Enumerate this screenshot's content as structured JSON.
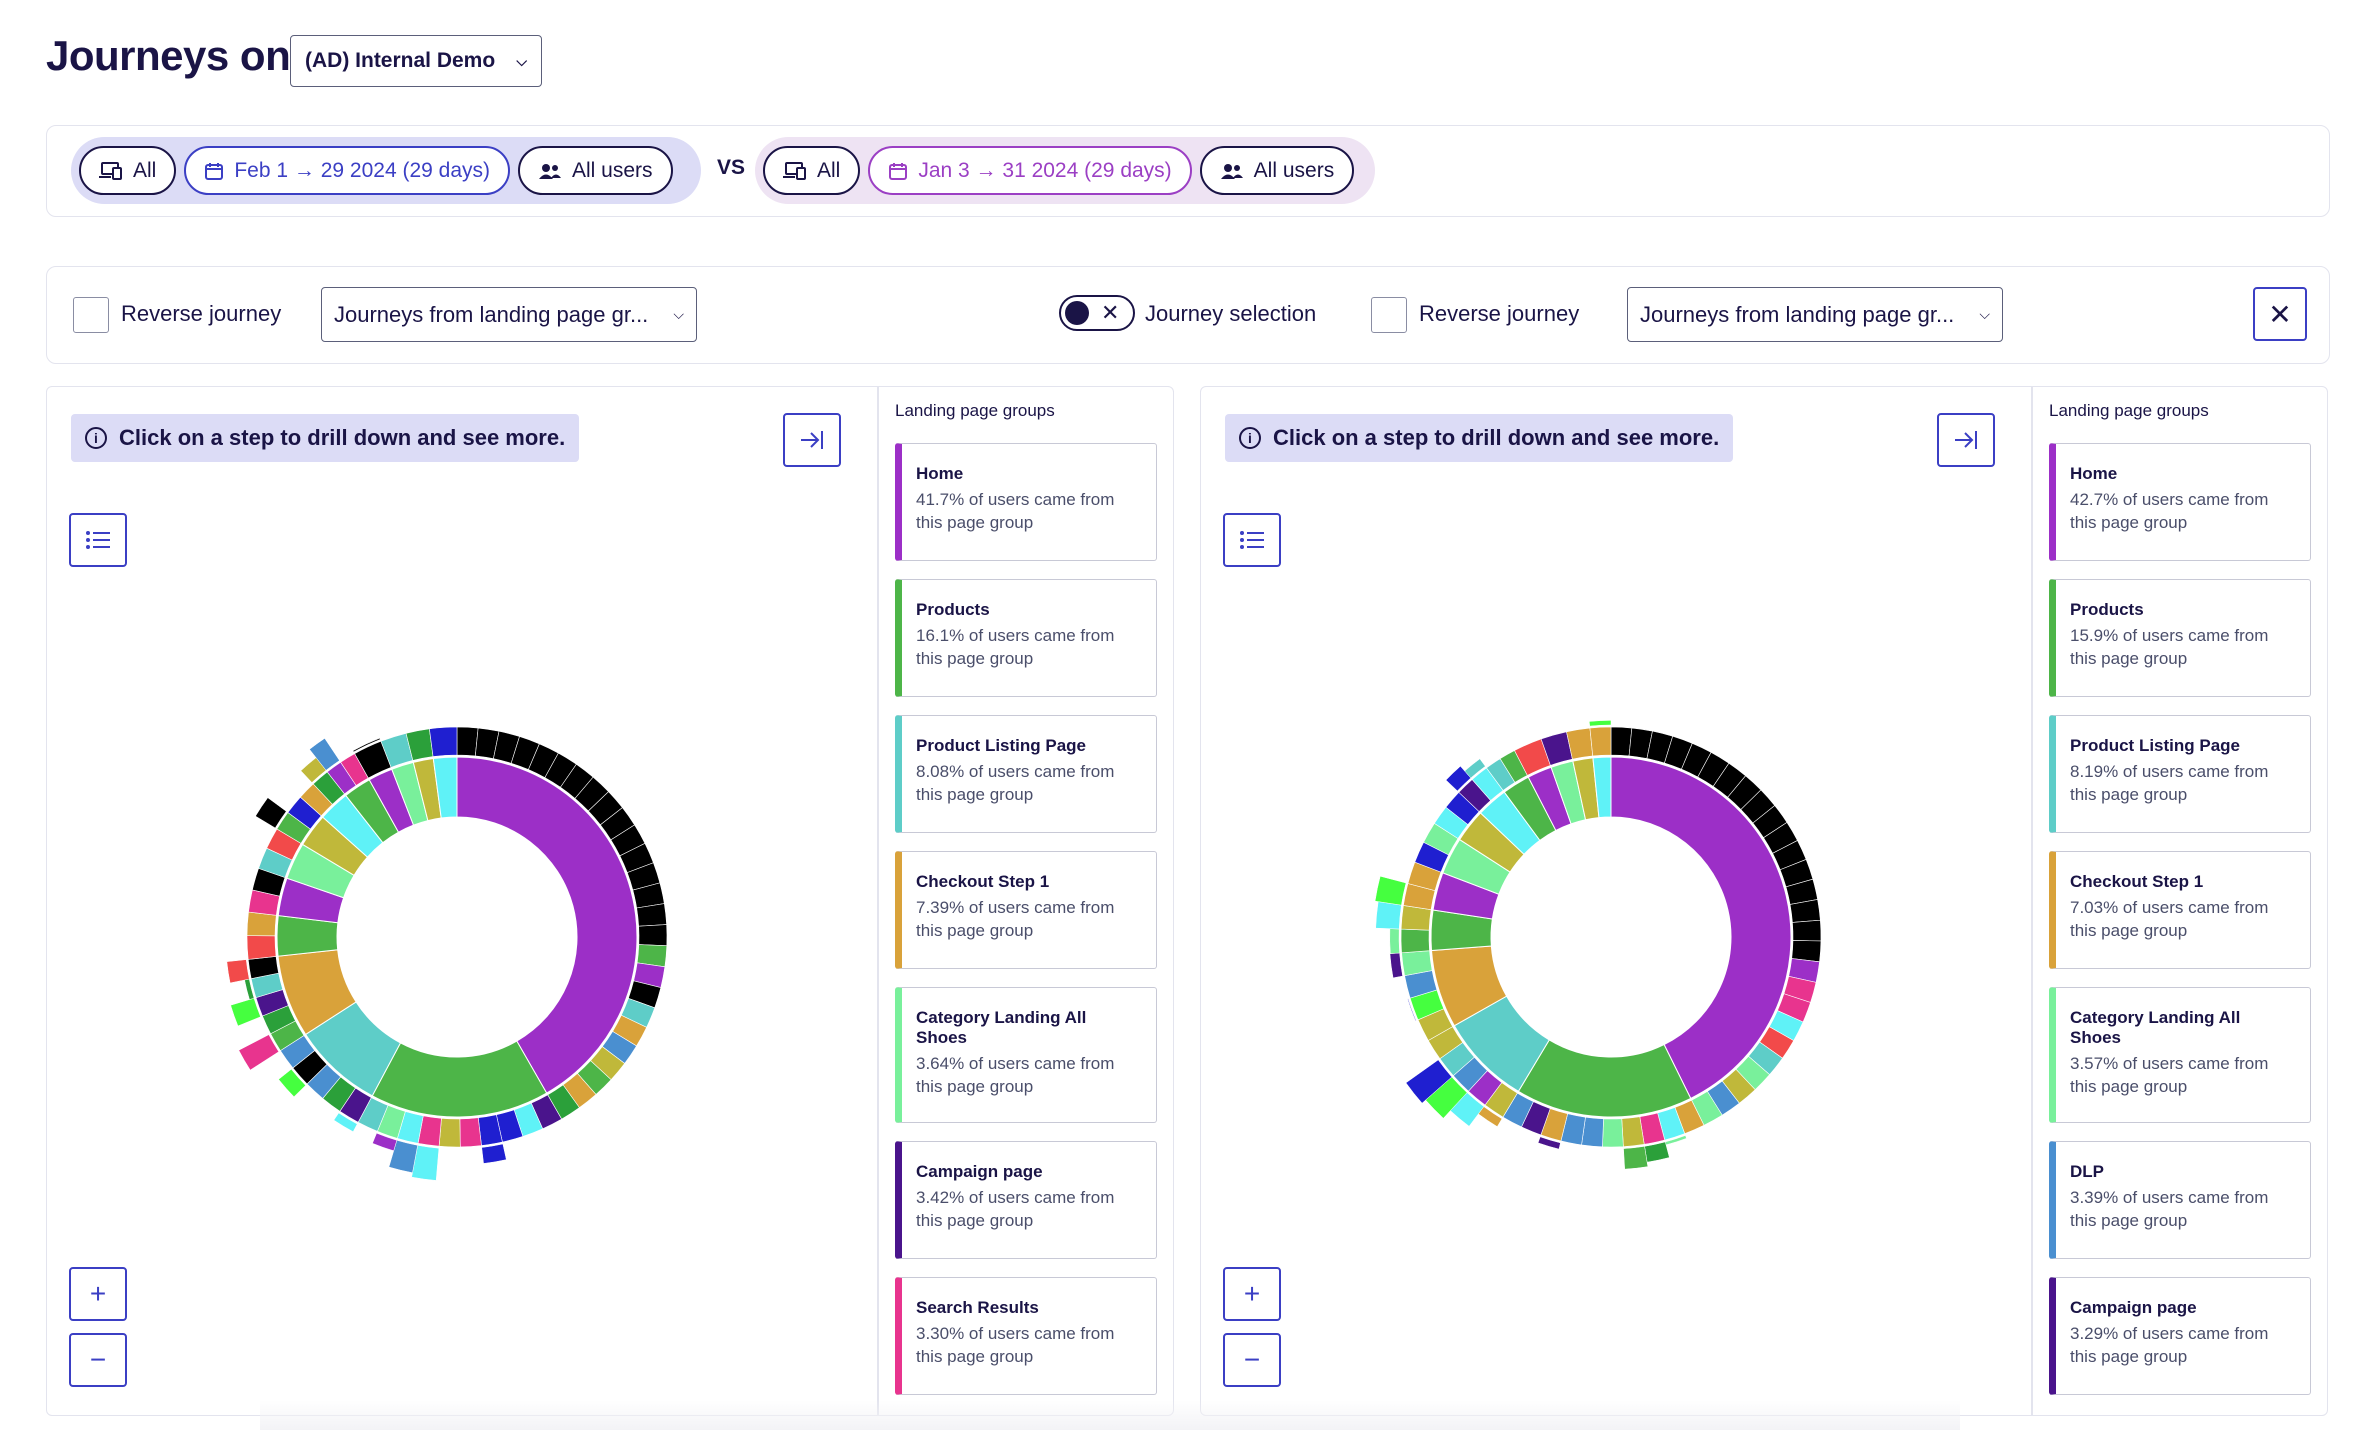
{
  "page": {
    "title": "Journeys on",
    "property_select": "(AD) Internal Demo"
  },
  "comparison": {
    "a": {
      "device": "All",
      "date": "Feb 1 → 29 2024 (29 days)",
      "segment": "All users"
    },
    "vs": "VS",
    "b": {
      "device": "All",
      "date": "Jan 3 → 31 2024 (29 days)",
      "segment": "All users"
    }
  },
  "options": {
    "reverse_label": "Reverse journey",
    "dropdown_value": "Journeys from landing page gr...",
    "toggle_label": "Journey selection"
  },
  "panels": {
    "left": {
      "hint": "Click on a step to drill down and see more.",
      "groups_title": "Landing page groups",
      "cards": [
        {
          "name": "Home",
          "desc": "41.7% of users came from this page group",
          "color": "#9c2fc7"
        },
        {
          "name": "Products",
          "desc": "16.1% of users came from this page group",
          "color": "#4db548"
        },
        {
          "name": "Product Listing Page",
          "desc": "8.08% of users came from this page group",
          "color": "#5ecdc8"
        },
        {
          "name": "Checkout Step 1",
          "desc": "7.39% of users came from this page group",
          "color": "#d9a23a"
        },
        {
          "name": "Category Landing All Shoes",
          "desc": "3.64% of users came from this page group",
          "color": "#79f09b"
        },
        {
          "name": "Campaign page",
          "desc": "3.42% of users came from this page group",
          "color": "#4a148c"
        },
        {
          "name": "Search Results",
          "desc": "3.30% of users came from this page group",
          "color": "#e8348e"
        }
      ]
    },
    "right": {
      "hint": "Click on a step to drill down and see more.",
      "groups_title": "Landing page groups",
      "cards": [
        {
          "name": "Home",
          "desc": "42.7% of users came from this page group",
          "color": "#9c2fc7"
        },
        {
          "name": "Products",
          "desc": "15.9% of users came from this page group",
          "color": "#4db548"
        },
        {
          "name": "Product Listing Page",
          "desc": "8.19% of users came from this page group",
          "color": "#5ecdc8"
        },
        {
          "name": "Checkout Step 1",
          "desc": "7.03% of users came from this page group",
          "color": "#d9a23a"
        },
        {
          "name": "Category Landing All Shoes",
          "desc": "3.57% of users came from this page group",
          "color": "#79f09b"
        },
        {
          "name": "DLP",
          "desc": "3.39% of users came from this page group",
          "color": "#4a8fd0"
        },
        {
          "name": "Campaign page",
          "desc": "3.29% of users came from this page group",
          "color": "#4a148c"
        }
      ]
    }
  }
}
